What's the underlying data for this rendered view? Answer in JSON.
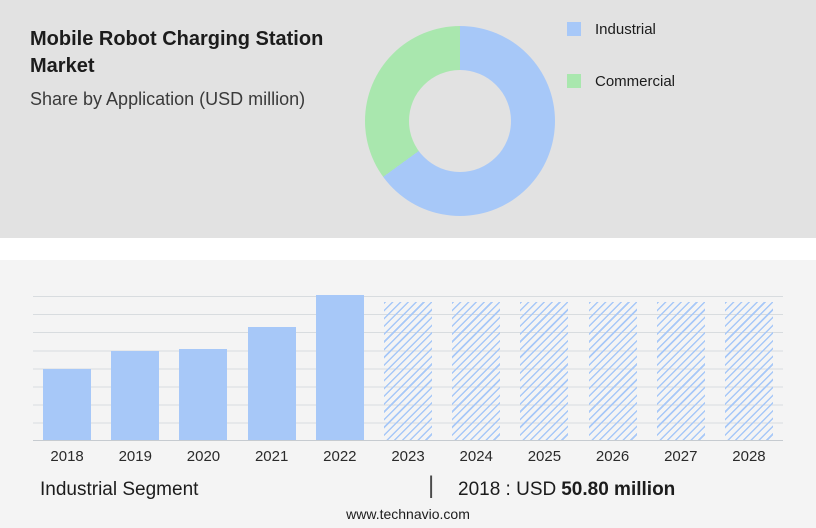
{
  "header": {
    "title_line1": "Mobile Robot Charging Station",
    "title_line2": "Market",
    "subtitle": "Share by Application (USD million)"
  },
  "legend": [
    {
      "label": "Industrial",
      "color": "#a7c8f8"
    },
    {
      "label": "Commercial",
      "color": "#a9e7ae"
    }
  ],
  "chart_data": [
    {
      "type": "pie",
      "donut": true,
      "title": "Share by Application (USD million)",
      "labels": [
        "Industrial",
        "Commercial"
      ],
      "values_percent": [
        65,
        35
      ],
      "colors": [
        "#a7c8f8",
        "#a9e7ae"
      ],
      "legend_position": "right"
    },
    {
      "type": "bar",
      "categories": [
        "2018",
        "2019",
        "2020",
        "2021",
        "2022",
        "2023",
        "2024",
        "2025",
        "2026",
        "2027",
        "2028"
      ],
      "values": [
        50.8,
        63.5,
        64.5,
        80.0,
        103.0,
        null,
        null,
        null,
        null,
        null,
        null
      ],
      "forecast_placeholder": {
        "categories": [
          "2023",
          "2024",
          "2025",
          "2026",
          "2027",
          "2028"
        ],
        "style": "hatched",
        "height_ratio": 0.95
      },
      "ylim": [
        0,
        103
      ],
      "xlabel": "",
      "ylabel": "",
      "grid": true,
      "bar_color": "#a7c8f8",
      "annotation": "2018 : USD 50.80 million"
    }
  ],
  "footer": {
    "segment_label": "Industrial Segment",
    "separator": "|",
    "stat_prefix": "2018 : USD",
    "stat_value": "50.80 million",
    "website": "www.technavio.com"
  }
}
